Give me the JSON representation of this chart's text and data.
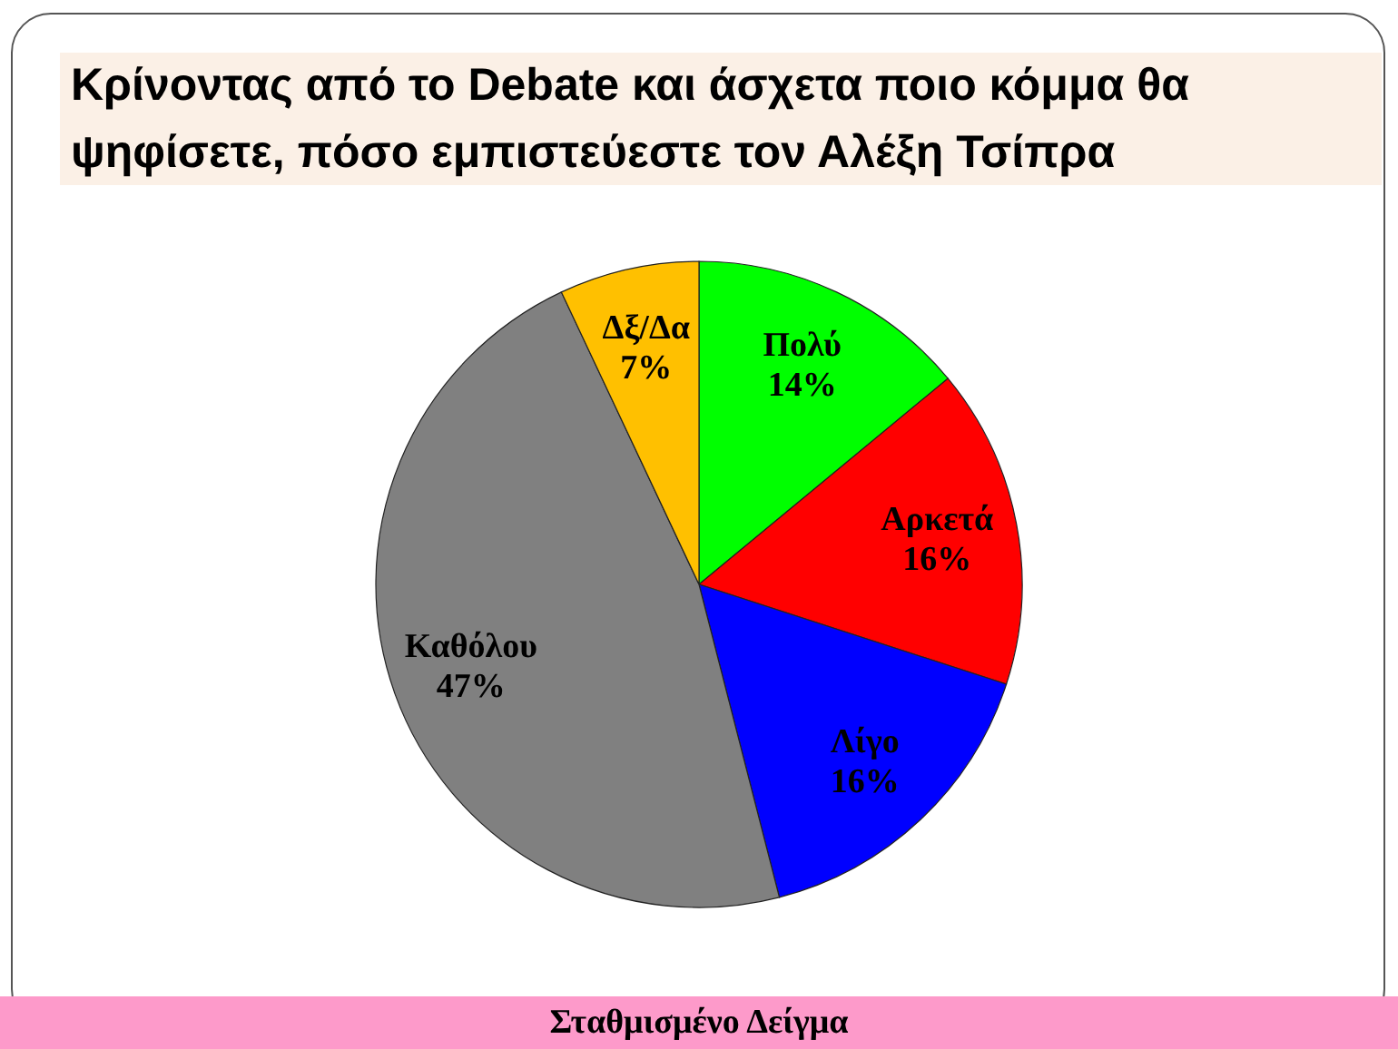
{
  "chart_data": {
    "type": "pie",
    "title": "Κρίνοντας από το Debate και άσχετα ποιο κόμμα θα ψηφίσετε, πόσο εμπιστεύεστε τον Αλέξη Τσίπρα",
    "categories": [
      "Πολύ",
      "Αρκετά",
      "Λίγο",
      "Καθόλου",
      "Δξ/Δα"
    ],
    "values": [
      14,
      16,
      16,
      47,
      7
    ],
    "value_labels": [
      "14%",
      "16%",
      "16%",
      "47%",
      "7%"
    ],
    "colors": [
      "#00ff00",
      "#ff0000",
      "#0000ff",
      "#808080",
      "#ffc000"
    ],
    "annotations": [
      "Σταθμισμένο Δείγμα"
    ]
  }
}
